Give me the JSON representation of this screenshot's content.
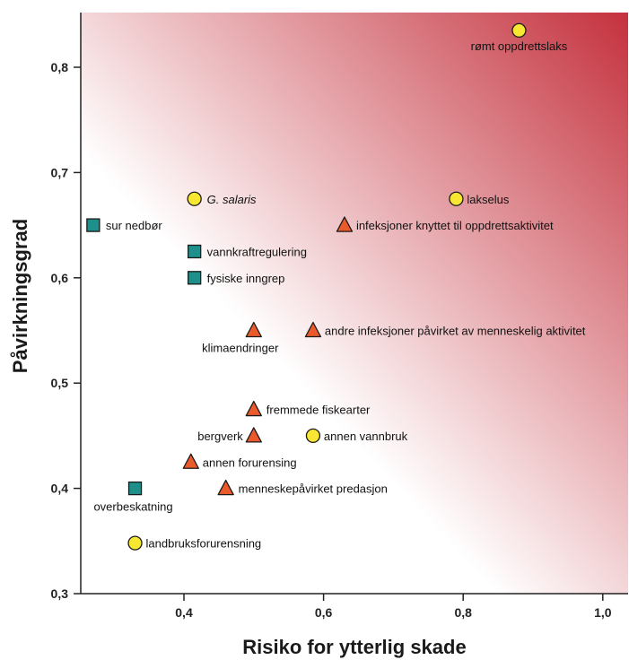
{
  "chart_data": {
    "type": "scatter",
    "title": "",
    "xlabel": "Risiko for ytterlig skade",
    "ylabel": "Påvirkningsgrad",
    "xlim": [
      0.25,
      1.05
    ],
    "ylim": [
      0.3,
      0.85
    ],
    "x_ticks": [
      "0,4",
      "0,6",
      "0,8",
      "1,0"
    ],
    "y_ticks": [
      "0,3",
      "0,4",
      "0,5",
      "0,6",
      "0,7",
      "0,8"
    ],
    "background_gradient": {
      "from": "#ffffff",
      "to": "#c4313d",
      "direction": "bottom-left to top-right"
    },
    "marker_colors": {
      "circle": "#f7e733",
      "square": "#1f8f8c",
      "triangle": "#ea5a2a"
    },
    "points": [
      {
        "label": "rømt oppdrettslaks",
        "x": 0.88,
        "y": 0.835,
        "shape": "circle",
        "italic": false
      },
      {
        "label": "G. salaris",
        "x": 0.415,
        "y": 0.675,
        "shape": "circle",
        "italic": true
      },
      {
        "label": "lakselus",
        "x": 0.79,
        "y": 0.675,
        "shape": "circle",
        "italic": false
      },
      {
        "label": "infeksjoner knyttet til oppdrettsaktivitet",
        "x": 0.63,
        "y": 0.65,
        "shape": "triangle",
        "italic": false
      },
      {
        "label": "sur nedbør",
        "x": 0.27,
        "y": 0.65,
        "shape": "square",
        "italic": false
      },
      {
        "label": "vannkraftregulering",
        "x": 0.415,
        "y": 0.625,
        "shape": "square",
        "italic": false
      },
      {
        "label": "fysiske inngrep",
        "x": 0.415,
        "y": 0.6,
        "shape": "square",
        "italic": false
      },
      {
        "label": "klimaendringer",
        "x": 0.5,
        "y": 0.55,
        "shape": "triangle",
        "italic": false
      },
      {
        "label": "andre infeksjoner påvirket av menneskelig aktivitet",
        "x": 0.585,
        "y": 0.55,
        "shape": "triangle",
        "italic": false
      },
      {
        "label": "fremmede fiskearter",
        "x": 0.5,
        "y": 0.475,
        "shape": "triangle",
        "italic": false
      },
      {
        "label": "bergverk",
        "x": 0.5,
        "y": 0.45,
        "shape": "triangle",
        "italic": false
      },
      {
        "label": "annen vannbruk",
        "x": 0.585,
        "y": 0.45,
        "shape": "circle",
        "italic": false
      },
      {
        "label": "annen forurensing",
        "x": 0.41,
        "y": 0.425,
        "shape": "triangle",
        "italic": false
      },
      {
        "label": "menneskepåvirket predasjon",
        "x": 0.46,
        "y": 0.4,
        "shape": "triangle",
        "italic": false
      },
      {
        "label": "overbeskatning",
        "x": 0.33,
        "y": 0.4,
        "shape": "square",
        "italic": false
      },
      {
        "label": "landbruksforurensning",
        "x": 0.33,
        "y": 0.348,
        "shape": "circle",
        "italic": false
      }
    ]
  }
}
